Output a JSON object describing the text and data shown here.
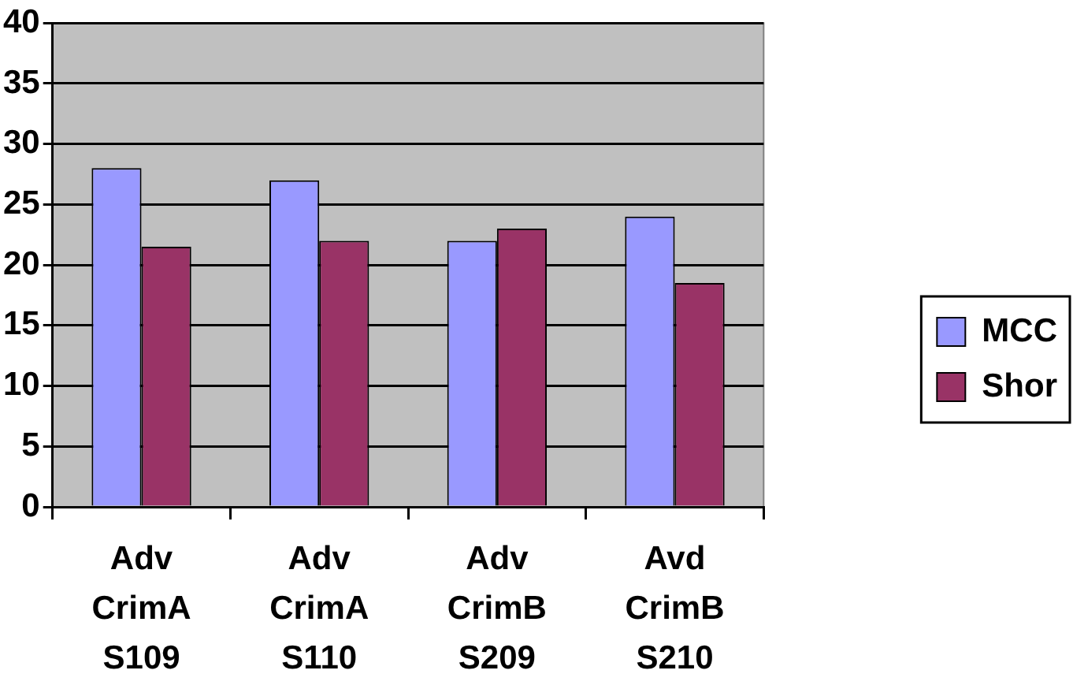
{
  "chart_data": {
    "type": "bar",
    "categories": [
      "Adv CrimA S109",
      "Adv CrimA S110",
      "Adv CrimB S209",
      "Avd CrimB S210"
    ],
    "series": [
      {
        "name": "MCC",
        "color": "#9999ff",
        "values": [
          28,
          27,
          22,
          24
        ]
      },
      {
        "name": "Shor",
        "color": "#993366",
        "values": [
          21.5,
          22,
          23,
          18.5
        ]
      }
    ],
    "ylim": [
      0,
      40
    ],
    "yticks": [
      0,
      5,
      10,
      15,
      20,
      25,
      30,
      35,
      40
    ],
    "grid": "y",
    "legend": "right"
  }
}
